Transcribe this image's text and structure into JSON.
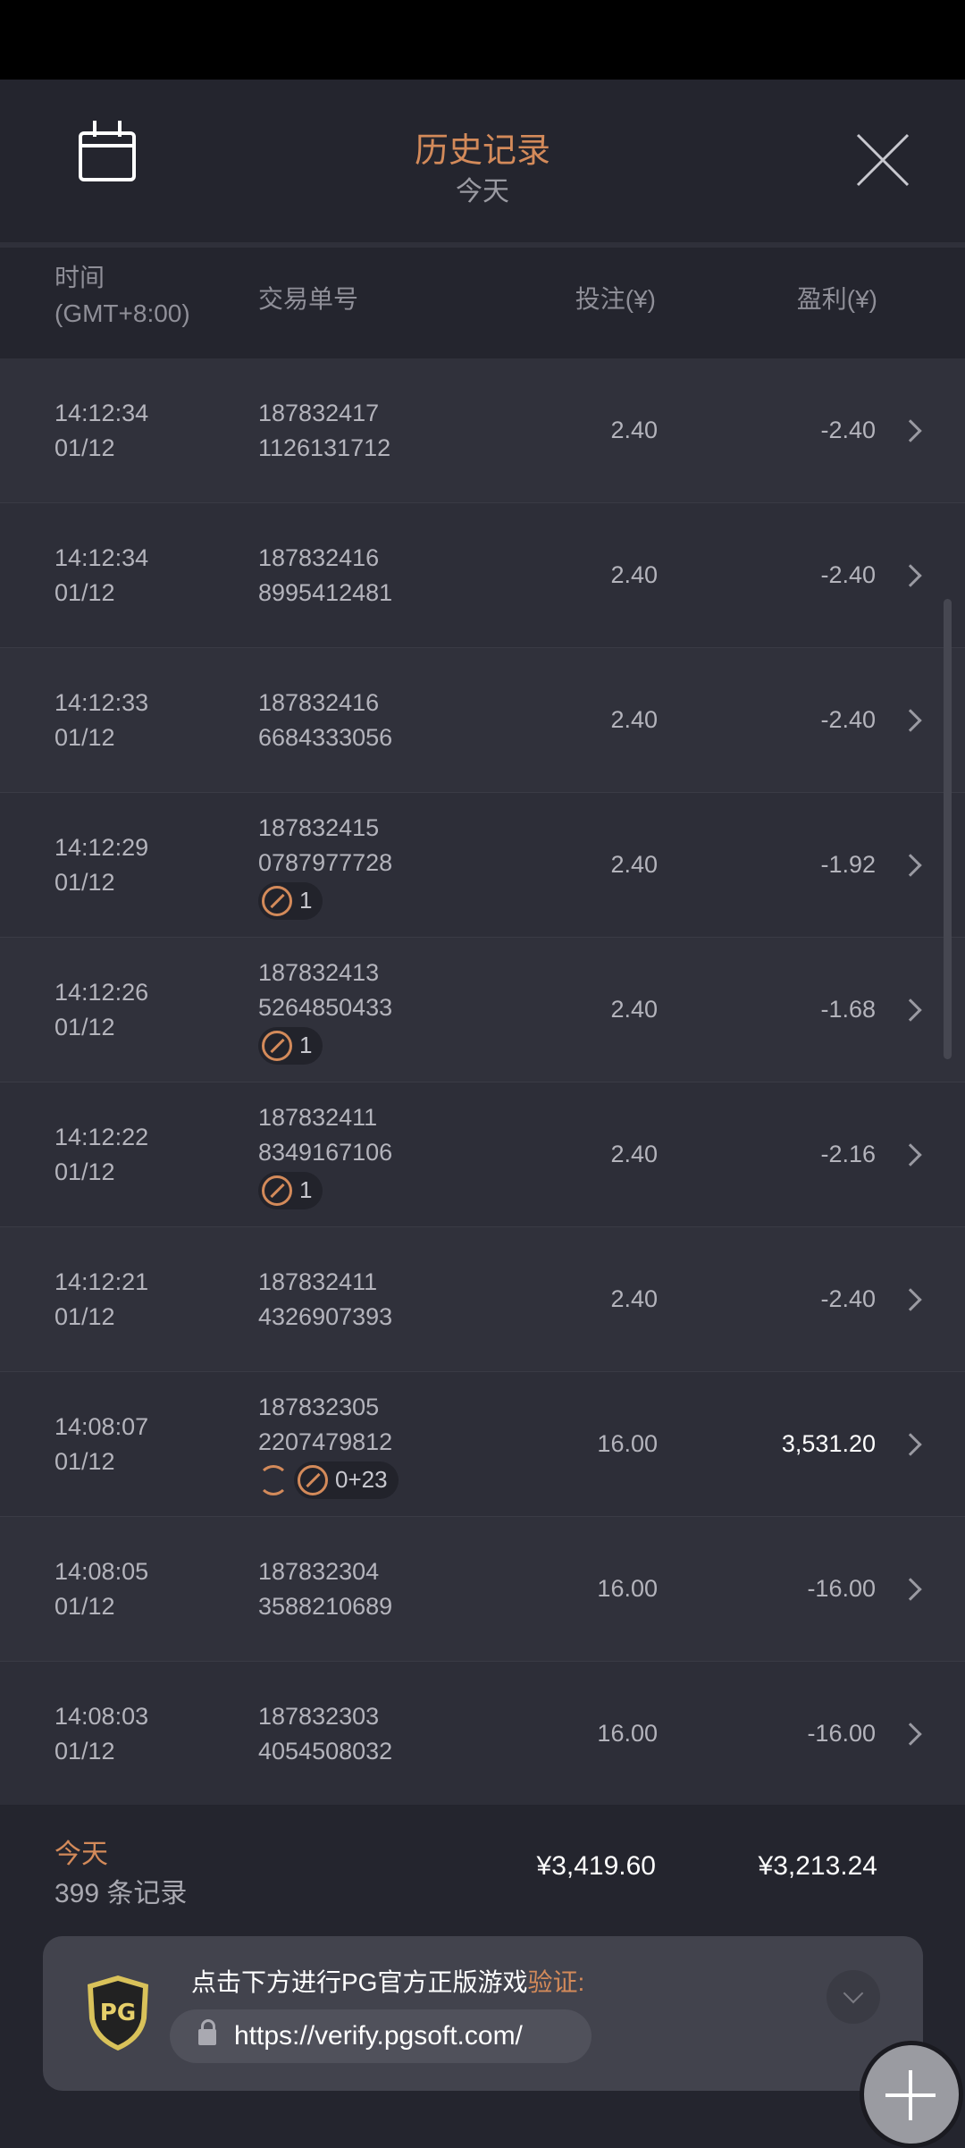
{
  "header": {
    "title": "历史记录",
    "subtitle": "今天"
  },
  "columns": {
    "time": "时间",
    "timezone": "(GMT+8:00)",
    "id": "交易单号",
    "bet": "投注(¥)",
    "profit": "盈利(¥)"
  },
  "rows": [
    {
      "time": "14:12:34",
      "date": "01/12",
      "id1": "187832417",
      "id2": "1126131712",
      "bet": "2.40",
      "profit": "-2.40"
    },
    {
      "time": "14:12:34",
      "date": "01/12",
      "id1": "187832416",
      "id2": "8995412481",
      "bet": "2.40",
      "profit": "-2.40"
    },
    {
      "time": "14:12:33",
      "date": "01/12",
      "id1": "187832416",
      "id2": "6684333056",
      "bet": "2.40",
      "profit": "-2.40"
    },
    {
      "time": "14:12:29",
      "date": "01/12",
      "id1": "187832415",
      "id2": "0787977728",
      "bet": "2.40",
      "profit": "-1.92",
      "badge": "1"
    },
    {
      "time": "14:12:26",
      "date": "01/12",
      "id1": "187832413",
      "id2": "5264850433",
      "bet": "2.40",
      "profit": "-1.68",
      "badge": "1"
    },
    {
      "time": "14:12:22",
      "date": "01/12",
      "id1": "187832411",
      "id2": "8349167106",
      "bet": "2.40",
      "profit": "-2.16",
      "badge": "1"
    },
    {
      "time": "14:12:21",
      "date": "01/12",
      "id1": "187832411",
      "id2": "4326907393",
      "bet": "2.40",
      "profit": "-2.40"
    },
    {
      "time": "14:08:07",
      "date": "01/12",
      "id1": "187832305",
      "id2": "2207479812",
      "bet": "16.00",
      "profit": "3,531.20",
      "badge": "0+23",
      "refresh": true,
      "win": true
    },
    {
      "time": "14:08:05",
      "date": "01/12",
      "id1": "187832304",
      "id2": "3588210689",
      "bet": "16.00",
      "profit": "-16.00"
    },
    {
      "time": "14:08:03",
      "date": "01/12",
      "id1": "187832303",
      "id2": "4054508032",
      "bet": "16.00",
      "profit": "-16.00"
    }
  ],
  "summary": {
    "period": "今天",
    "count": "399 条记录",
    "total_bet": "¥3,419.60",
    "total_profit": "¥3,213.24"
  },
  "banner": {
    "text": "点击下方进行PG官方正版游戏",
    "highlight": "验证:",
    "url": "https://verify.pgsoft.com/",
    "logo": "PG"
  },
  "colors": {
    "accent": "#d38a5a",
    "background": "#24252e"
  }
}
